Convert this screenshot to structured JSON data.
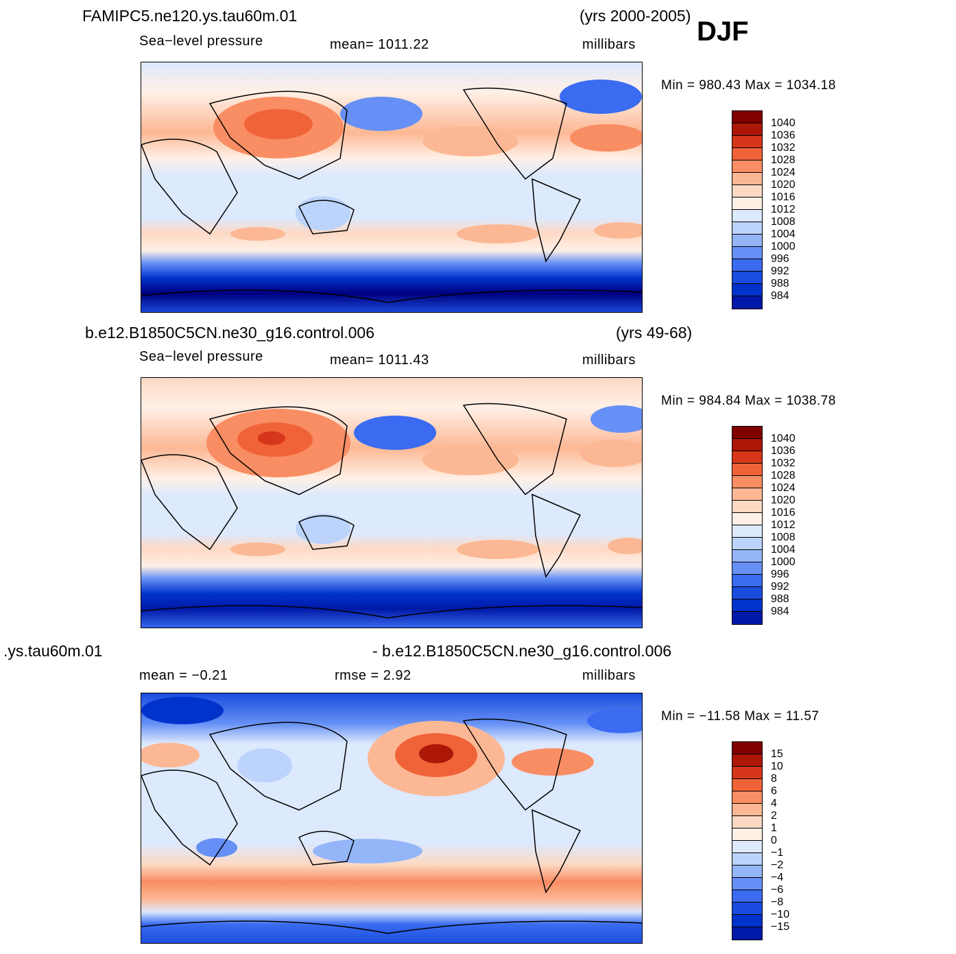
{
  "season": "DJF",
  "colors": {
    "abs_scale": [
      "#00007f",
      "#0019a8",
      "#0033cc",
      "#1a4ddf",
      "#3a6bf0",
      "#6690f5",
      "#94b6f9",
      "#bcd4fb",
      "#dde9fd",
      "#fff0e6",
      "#fdd9c4",
      "#fcb894",
      "#f98d63",
      "#f06338",
      "#d6361a",
      "#ad1708",
      "#800000"
    ],
    "diff_scale": [
      "#00007f",
      "#0019a8",
      "#0033cc",
      "#1a4ddf",
      "#3a6bf0",
      "#6690f5",
      "#94b6f9",
      "#bcd4fb",
      "#dde9fd",
      "#fff0e6",
      "#fdd9c4",
      "#fcb894",
      "#f98d63",
      "#f06338",
      "#d6361a",
      "#ad1708",
      "#800000"
    ],
    "land": "#000000"
  },
  "panels": [
    {
      "case": "FAMIPC5.ne120.ys.tau60m.01",
      "years": "(yrs 2000-2005)",
      "field": "Sea−level pressure",
      "stat1": "mean=  1011.22",
      "units": "millibars",
      "minmax": "Min  =  980.43  Max  =  1034.18",
      "labels": [
        "1040",
        "1036",
        "1032",
        "1028",
        "1024",
        "1020",
        "1016",
        "1012",
        "1008",
        "1004",
        "1000",
        "996",
        "992",
        "988",
        "984"
      ]
    },
    {
      "case": "b.e12.B1850C5CN.ne30_g16.control.006",
      "years": "(yrs 49-68)",
      "field": "Sea−level pressure",
      "stat1": "mean=  1011.43",
      "units": "millibars",
      "minmax": "Min  =  984.84  Max  =  1038.78",
      "labels": [
        "1040",
        "1036",
        "1032",
        "1028",
        "1024",
        "1020",
        "1016",
        "1012",
        "1008",
        "1004",
        "1000",
        "996",
        "992",
        "988",
        "984"
      ]
    },
    {
      "case": ".ys.tau60m.01",
      "years": "- b.e12.B1850C5CN.ne30_g16.control.006",
      "stat1": "mean  =     −0.21",
      "stat2": "rmse  =      2.92",
      "units": "millibars",
      "minmax": "Min  =  −11.58  Max  =    11.57",
      "labels": [
        "15",
        "10",
        "8",
        "6",
        "4",
        "2",
        "1",
        "0",
        "−1",
        "−2",
        "−4",
        "−6",
        "−8",
        "−10",
        "−15"
      ]
    }
  ]
}
